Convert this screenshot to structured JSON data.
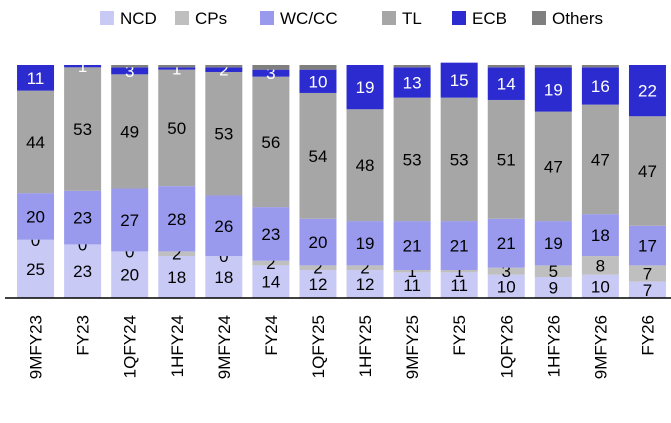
{
  "chart_data": {
    "type": "stacked_bar",
    "categories": [
      "9MFY23",
      "FY23",
      "1QFY24",
      "1HFY24",
      "9MFY24",
      "FY24",
      "1QFY25",
      "1HFY25",
      "9MFY25",
      "FY25",
      "1QFY26",
      "1HFY26",
      "9MFY26",
      "FY26"
    ],
    "series": [
      {
        "name": "NCD",
        "color": "#c9c9f5",
        "values": [
          25,
          23,
          20,
          18,
          18,
          14,
          12,
          12,
          11,
          11,
          10,
          9,
          10,
          7
        ]
      },
      {
        "name": "CPs",
        "color": "#bfbfbf",
        "values": [
          0,
          0,
          0,
          2,
          0,
          2,
          2,
          2,
          1,
          1,
          3,
          5,
          8,
          7
        ]
      },
      {
        "name": "WC/CC",
        "color": "#9999ee",
        "values": [
          20,
          23,
          27,
          28,
          26,
          23,
          20,
          19,
          21,
          21,
          21,
          19,
          18,
          17
        ]
      },
      {
        "name": "TL",
        "color": "#a6a6a6",
        "values": [
          44,
          53,
          49,
          50,
          53,
          56,
          54,
          48,
          53,
          53,
          51,
          47,
          47,
          47
        ]
      },
      {
        "name": "ECB",
        "color": "#2b2bd0",
        "label_color": "#ffffff",
        "values": [
          11,
          1,
          3,
          1,
          2,
          3,
          10,
          19,
          13,
          15,
          14,
          19,
          16,
          22
        ]
      },
      {
        "name": "Others",
        "color": "#7f7f7f",
        "labels": false,
        "values": [
          0,
          0,
          1,
          1,
          1,
          2,
          2,
          0,
          1,
          0,
          1,
          1,
          1,
          0
        ]
      }
    ],
    "ylim": [
      0,
      100
    ]
  }
}
